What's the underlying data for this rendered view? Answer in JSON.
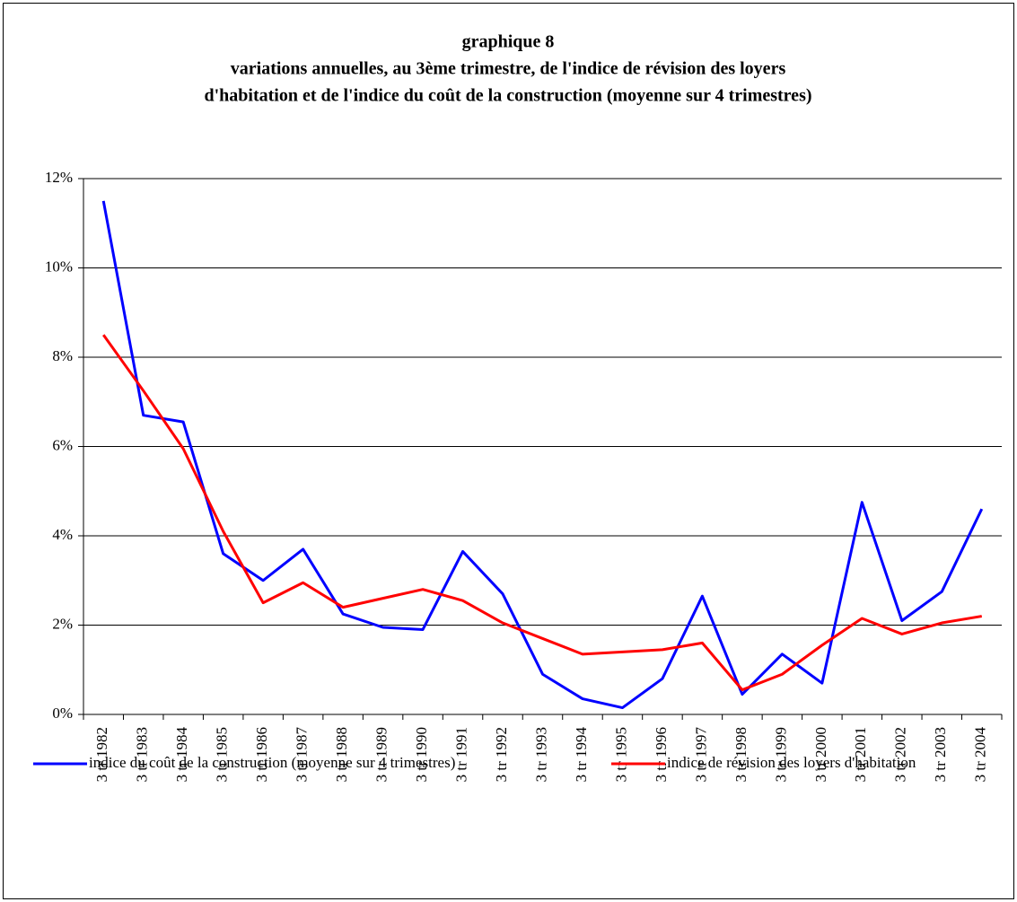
{
  "chart_data": {
    "type": "line",
    "title": "graphique 8",
    "subtitle": [
      "variations annuelles, au 3ème trimestre, de l'indice de révision des loyers",
      "d'habitation et de l'indice du coût de la construction (moyenne sur 4 trimestres)"
    ],
    "categories": [
      "3 tr 1982",
      "3 tr 1983",
      "3 tr 1984",
      "3 tr 1985",
      "3 tr 1986",
      "3 tr 1987",
      "3 tr 1988",
      "3 tr 1989",
      "3 tr 1990",
      "3 tr 1991",
      "3 tr 1992",
      "3 tr 1993",
      "3 tr 1994",
      "3 tr 1995",
      "3 tr 1996",
      "3 tr 1997",
      "3 tr 1998",
      "3 tr 1999",
      "3 tr 2000",
      "3 tr 2001",
      "3 tr 2002",
      "3 tr 2003",
      "3 tr 2004"
    ],
    "series": [
      {
        "name": "indice du coût de la construction (moyenne sur 4 trimestres)",
        "color": "#0000ff",
        "values": [
          11.5,
          6.7,
          6.55,
          3.6,
          3.0,
          3.7,
          2.25,
          1.95,
          1.9,
          3.65,
          2.7,
          0.9,
          0.35,
          0.15,
          0.8,
          2.65,
          0.45,
          1.35,
          0.7,
          4.75,
          2.1,
          2.75,
          4.6
        ]
      },
      {
        "name": "indice de révision des loyers d'habitation",
        "color": "#ff0000",
        "values": [
          8.5,
          7.25,
          5.95,
          4.1,
          2.5,
          2.95,
          2.4,
          2.6,
          2.8,
          2.55,
          2.05,
          1.7,
          1.35,
          1.4,
          1.45,
          1.6,
          0.55,
          0.9,
          1.55,
          2.15,
          1.8,
          2.05,
          2.2
        ]
      }
    ],
    "ylim": [
      0,
      12
    ],
    "yticks": [
      {
        "value": 0,
        "label": "0%"
      },
      {
        "value": 2,
        "label": "2%"
      },
      {
        "value": 4,
        "label": "4%"
      },
      {
        "value": 6,
        "label": "6%"
      },
      {
        "value": 8,
        "label": "8%"
      },
      {
        "value": 10,
        "label": "10%"
      },
      {
        "value": 12,
        "label": "12%"
      }
    ],
    "grid": true,
    "legend": "bottom"
  }
}
